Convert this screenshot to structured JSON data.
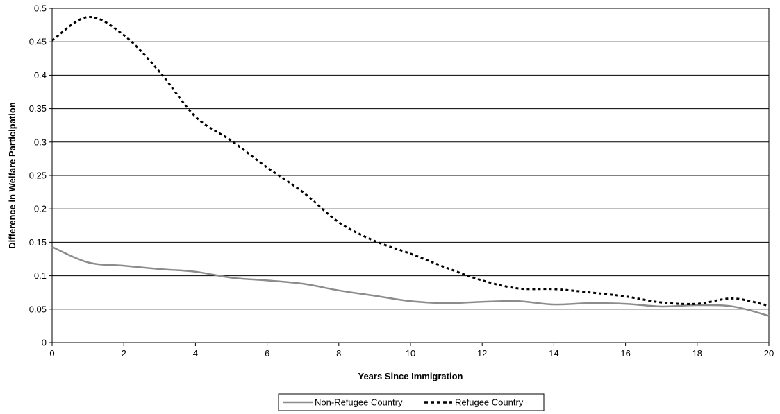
{
  "chart_data": {
    "type": "line",
    "title": "",
    "xlabel": "Years Since Immigration",
    "ylabel": "Difference in Welfare Participation",
    "xlim": [
      0,
      20
    ],
    "ylim": [
      0,
      0.5
    ],
    "xticks": [
      0,
      2,
      4,
      6,
      8,
      10,
      12,
      14,
      16,
      18,
      20
    ],
    "yticks": [
      0,
      0.05,
      0.1,
      0.15,
      0.2,
      0.25,
      0.3,
      0.35,
      0.4,
      0.45,
      0.5
    ],
    "xtick_labels": [
      "0",
      "2",
      "4",
      "6",
      "8",
      "10",
      "12",
      "14",
      "16",
      "18",
      "20"
    ],
    "ytick_labels": [
      "0",
      "0.05",
      "0.1",
      "0.15",
      "0.2",
      "0.25",
      "0.3",
      "0.35",
      "0.4",
      "0.45",
      "0.5"
    ],
    "grid": "horizontal",
    "legend": "bottom-center",
    "x": [
      0,
      1,
      2,
      3,
      4,
      5,
      6,
      7,
      8,
      9,
      10,
      11,
      12,
      13,
      14,
      15,
      16,
      17,
      18,
      19,
      20
    ],
    "series": [
      {
        "name": "Non-Refugee Country",
        "color": "#8c8c8c",
        "style": "solid",
        "values": [
          0.143,
          0.12,
          0.115,
          0.11,
          0.106,
          0.097,
          0.093,
          0.088,
          0.078,
          0.07,
          0.062,
          0.059,
          0.061,
          0.062,
          0.057,
          0.059,
          0.058,
          0.054,
          0.056,
          0.054,
          0.04
        ]
      },
      {
        "name": "Refugee Country",
        "color": "#000000",
        "style": "dotted",
        "values": [
          0.452,
          0.487,
          0.46,
          0.405,
          0.338,
          0.302,
          0.262,
          0.225,
          0.18,
          0.152,
          0.133,
          0.112,
          0.093,
          0.081,
          0.08,
          0.075,
          0.069,
          0.06,
          0.058,
          0.066,
          0.055
        ]
      }
    ]
  }
}
